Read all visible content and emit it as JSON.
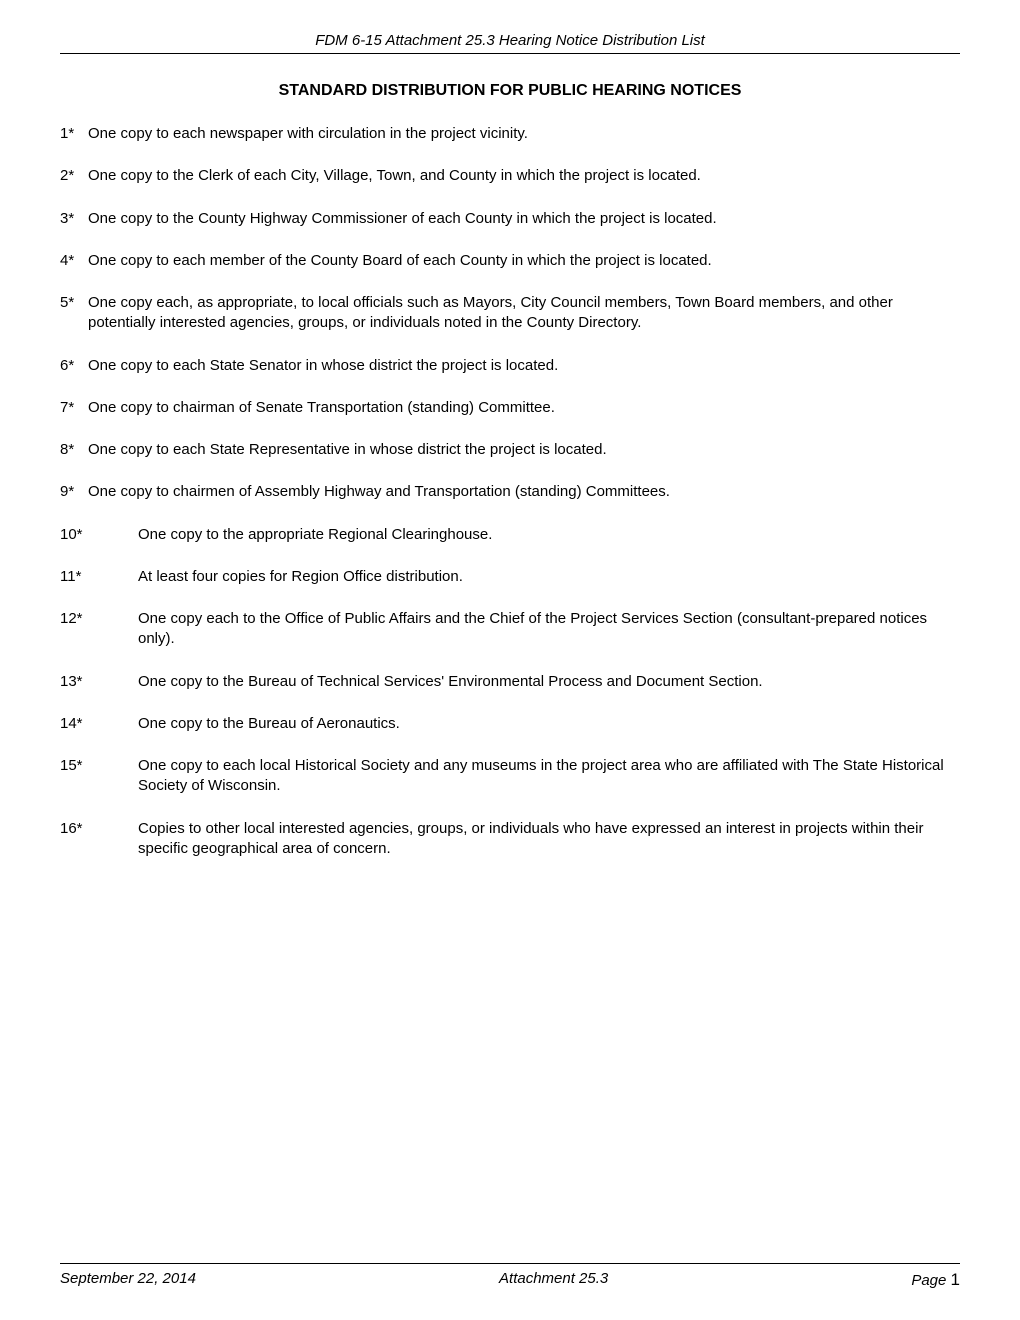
{
  "header": {
    "doc_title": "FDM 6-15 Attachment 25.3 Hearing Notice Distribution List"
  },
  "title": "STANDARD DISTRIBUTION FOR PUBLIC HEARING NOTICES",
  "items": [
    {
      "num": "1*",
      "wide": false,
      "text": "One copy to each newspaper with circulation in the project vicinity."
    },
    {
      "num": "2*",
      "wide": false,
      "text": "One copy to the Clerk of each City, Village, Town, and County in which the project is located."
    },
    {
      "num": "3*",
      "wide": false,
      "text": "One copy to the County Highway Commissioner of each County in which the project is located."
    },
    {
      "num": "4*",
      "wide": false,
      "text": "One copy to each member of the County Board of each County in which the project is located."
    },
    {
      "num": "5*",
      "wide": false,
      "text": "One copy each, as appropriate, to local officials such as Mayors, City Council members, Town Board members, and other potentially interested agencies, groups, or individuals noted in the County Directory."
    },
    {
      "num": "6*",
      "wide": false,
      "text": "One copy to each State Senator in whose district the project is located."
    },
    {
      "num": "7*",
      "wide": false,
      "text": "One copy to chairman of Senate Transportation (standing) Committee."
    },
    {
      "num": "8*",
      "wide": false,
      "text": "One copy to each State Representative in whose district the project is located."
    },
    {
      "num": "9*",
      "wide": false,
      "text": "One copy to chairmen of Assembly Highway and Transportation (standing) Committees."
    },
    {
      "num": "10*",
      "wide": true,
      "text": "One copy to the appropriate Regional Clearinghouse."
    },
    {
      "num": "11*",
      "wide": true,
      "text": "At least four copies for Region Office distribution."
    },
    {
      "num": "12*",
      "wide": true,
      "text": "One copy each to the Office of Public Affairs and the Chief of the Project Services Section (consultant-prepared notices only)."
    },
    {
      "num": "13*",
      "wide": true,
      "text": "One copy to the Bureau of Technical Services' Environmental Process and Document Section."
    },
    {
      "num": "14*",
      "wide": true,
      "text": "One copy to the Bureau of Aeronautics."
    },
    {
      "num": "15*",
      "wide": true,
      "text": "One copy to each local Historical Society and any museums in the project area who are affiliated with The State Historical Society of Wisconsin."
    },
    {
      "num": "16*",
      "wide": true,
      "text": "Copies to other local interested agencies, groups, or individuals who have expressed an interest in projects within their specific geographical area of concern."
    }
  ],
  "footer": {
    "date": "September 22, 2014",
    "attachment": "Attachment 25.3",
    "page_label": "Page ",
    "page_num": "1"
  }
}
